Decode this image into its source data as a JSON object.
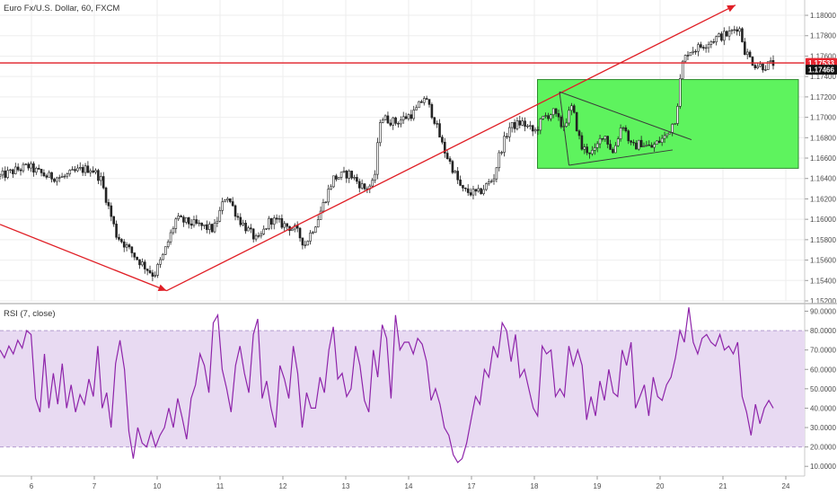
{
  "chart_data": [
    {
      "type": "candlestick",
      "title": "Euro Fx/U.S. Dollar, 60, FXCM",
      "ylim": [
        1.152,
        1.1815
      ],
      "y_ticks": [
        "1.18000",
        "1.17800",
        "1.17600",
        "1.17400",
        "1.17200",
        "1.17000",
        "1.16800",
        "1.16600",
        "1.16400",
        "1.16200",
        "1.16000",
        "1.15800",
        "1.15600",
        "1.15400",
        "1.15200"
      ],
      "x_ticks": [
        {
          "label": "6",
          "x": 0.5
        },
        {
          "label": "7",
          "x": 1.5
        },
        {
          "label": "10",
          "x": 2.5
        },
        {
          "label": "11",
          "x": 3.5
        },
        {
          "label": "12",
          "x": 4.5
        },
        {
          "label": "13",
          "x": 5.5
        },
        {
          "label": "14",
          "x": 6.5
        },
        {
          "label": "17",
          "x": 7.5
        },
        {
          "label": "18",
          "x": 8.5
        },
        {
          "label": "19",
          "x": 9.5
        },
        {
          "label": "20",
          "x": 10.5
        },
        {
          "label": "21",
          "x": 11.5
        },
        {
          "label": "24",
          "x": 12.5
        }
      ],
      "price_path": [
        [
          0.0,
          1.1642
        ],
        [
          0.25,
          1.1648
        ],
        [
          0.45,
          1.1652
        ],
        [
          0.55,
          1.1648
        ],
        [
          0.75,
          1.1642
        ],
        [
          1.0,
          1.1641
        ],
        [
          1.25,
          1.1648
        ],
        [
          1.45,
          1.165
        ],
        [
          1.6,
          1.164
        ],
        [
          1.85,
          1.1585
        ],
        [
          2.2,
          1.156
        ],
        [
          2.45,
          1.1545
        ],
        [
          2.6,
          1.1565
        ],
        [
          2.8,
          1.16
        ],
        [
          3.1,
          1.1595
        ],
        [
          3.4,
          1.159
        ],
        [
          3.6,
          1.1625
        ],
        [
          3.8,
          1.16
        ],
        [
          4.1,
          1.1578
        ],
        [
          4.3,
          1.16
        ],
        [
          4.5,
          1.1595
        ],
        [
          4.7,
          1.159
        ],
        [
          4.85,
          1.1575
        ],
        [
          5.05,
          1.16
        ],
        [
          5.3,
          1.164
        ],
        [
          5.55,
          1.1645
        ],
        [
          5.8,
          1.163
        ],
        [
          5.95,
          1.1635
        ],
        [
          6.05,
          1.17
        ],
        [
          6.3,
          1.1695
        ],
        [
          6.6,
          1.1705
        ],
        [
          6.75,
          1.172
        ],
        [
          6.9,
          1.17
        ],
        [
          7.05,
          1.167
        ],
        [
          7.2,
          1.165
        ],
        [
          7.35,
          1.1628
        ],
        [
          7.6,
          1.1625
        ],
        [
          7.85,
          1.164
        ],
        [
          7.95,
          1.1665
        ],
        [
          8.1,
          1.169
        ],
        [
          8.3,
          1.1695
        ],
        [
          8.5,
          1.1685
        ],
        [
          8.65,
          1.17
        ],
        [
          8.8,
          1.1705
        ],
        [
          8.95,
          1.169
        ],
        [
          9.1,
          1.171
        ],
        [
          9.25,
          1.167
        ],
        [
          9.45,
          1.1665
        ],
        [
          9.6,
          1.1685
        ],
        [
          9.75,
          1.1665
        ],
        [
          9.9,
          1.1695
        ],
        [
          10.05,
          1.167
        ],
        [
          10.2,
          1.1675
        ],
        [
          10.35,
          1.167
        ],
        [
          10.6,
          1.1682
        ],
        [
          10.75,
          1.17
        ],
        [
          10.85,
          1.1752
        ],
        [
          10.95,
          1.1765
        ],
        [
          11.1,
          1.1768
        ],
        [
          11.4,
          1.1778
        ],
        [
          11.6,
          1.1782
        ],
        [
          11.75,
          1.179
        ],
        [
          11.85,
          1.1765
        ],
        [
          12.0,
          1.1752
        ],
        [
          12.15,
          1.175
        ],
        [
          12.3,
          1.1753
        ]
      ],
      "horizontal_line": 1.17533,
      "price_badges": [
        {
          "text": "1.17533",
          "value": 1.17533,
          "bg": "#e8252f",
          "fg": "#ffffff"
        },
        {
          "text": "1.17466",
          "value": 1.17466,
          "bg": "#111111",
          "fg": "#ffffff"
        }
      ],
      "trend_arrow_1": {
        "from": [
          0.0,
          1.1595
        ],
        "to": [
          2.65,
          1.153
        ]
      },
      "trend_arrow_2": {
        "from": [
          2.65,
          1.153
        ],
        "to": [
          11.7,
          1.181
        ]
      },
      "green_zone": {
        "x0": 8.55,
        "x1": 12.7,
        "y_low": 1.165,
        "y_high": 1.1737
      },
      "triangle_upper": {
        "from": [
          8.9,
          1.1725
        ],
        "to": [
          11.0,
          1.1678
        ]
      },
      "triangle_lower": {
        "from": [
          9.05,
          1.1653
        ],
        "to": [
          10.7,
          1.1668
        ]
      },
      "triangle_left": {
        "from": [
          8.9,
          1.1725
        ],
        "to": [
          9.05,
          1.1653
        ]
      },
      "colors": {
        "trend": "#e01f26",
        "zone": "#5ef35e",
        "zone_border": "#2d8a2d",
        "candle": "#222222",
        "pattern": "#3a3a3a",
        "grid": "#eeeeee"
      }
    },
    {
      "type": "line",
      "title": "RSI (7, close)",
      "ylim": [
        5,
        93
      ],
      "y_ticks": [
        "90.0000",
        "80.0000",
        "70.0000",
        "60.0000",
        "50.0000",
        "40.0000",
        "30.0000",
        "20.0000",
        "10.0000"
      ],
      "band": [
        20,
        80
      ],
      "values": [
        70,
        66,
        72,
        68,
        75,
        71,
        80,
        78,
        45,
        38,
        68,
        40,
        58,
        42,
        63,
        40,
        52,
        38,
        47,
        42,
        55,
        46,
        72,
        40,
        48,
        30,
        63,
        75,
        60,
        28,
        14,
        30,
        22,
        20,
        28,
        20,
        26,
        30,
        40,
        30,
        45,
        35,
        24,
        45,
        52,
        68,
        62,
        48,
        84,
        88,
        60,
        50,
        38,
        62,
        72,
        58,
        48,
        78,
        86,
        45,
        54,
        40,
        30,
        62,
        55,
        45,
        72,
        58,
        30,
        48,
        40,
        40,
        56,
        48,
        70,
        82,
        55,
        58,
        46,
        50,
        72,
        62,
        44,
        38,
        70,
        56,
        83,
        76,
        45,
        88,
        70,
        74,
        74,
        68,
        76,
        73,
        64,
        44,
        50,
        42,
        30,
        26,
        16,
        12,
        14,
        22,
        34,
        46,
        42,
        60,
        56,
        72,
        66,
        84,
        80,
        64,
        78,
        56,
        60,
        50,
        40,
        36,
        72,
        68,
        70,
        46,
        50,
        46,
        72,
        62,
        70,
        62,
        34,
        46,
        36,
        54,
        44,
        60,
        48,
        46,
        70,
        62,
        74,
        40,
        46,
        52,
        36,
        56,
        46,
        44,
        52,
        56,
        66,
        80,
        74,
        92,
        74,
        68,
        76,
        78,
        74,
        72,
        78,
        70,
        72,
        68,
        74,
        46,
        38,
        26,
        42,
        32,
        40,
        44,
        40
      ],
      "colors": {
        "line": "#8e24aa",
        "band_fill": "#e8daf2",
        "band_edge": "#b39ccf"
      }
    }
  ]
}
